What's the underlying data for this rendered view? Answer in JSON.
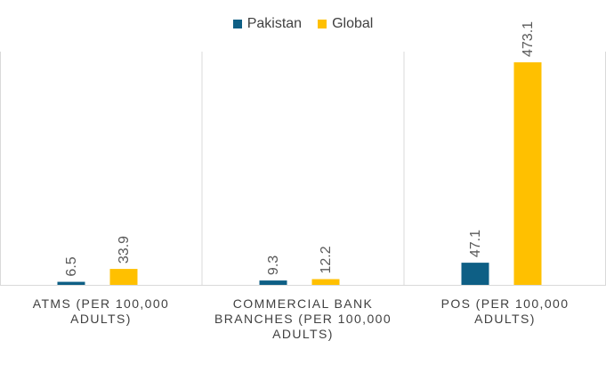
{
  "chart_data": {
    "type": "bar",
    "categories": [
      [
        "ATMS (PER 100,000",
        "ADULTS)"
      ],
      [
        "COMMERCIAL BANK",
        "BRANCHES (PER 100,000",
        "ADULTS)"
      ],
      [
        "POS (PER 100,000",
        "ADULTS)"
      ]
    ],
    "series": [
      {
        "name": "Pakistan",
        "values": [
          6.5,
          9.3,
          47.1
        ],
        "color": "#0e5f85"
      },
      {
        "name": "Global",
        "values": [
          33.9,
          12.2,
          473.1
        ],
        "color": "#ffc000"
      }
    ],
    "title": "",
    "xlabel": "",
    "ylabel": "",
    "ylim": [
      0,
      473.1
    ],
    "legend_position": "top",
    "grid": false,
    "data_labels": true
  }
}
